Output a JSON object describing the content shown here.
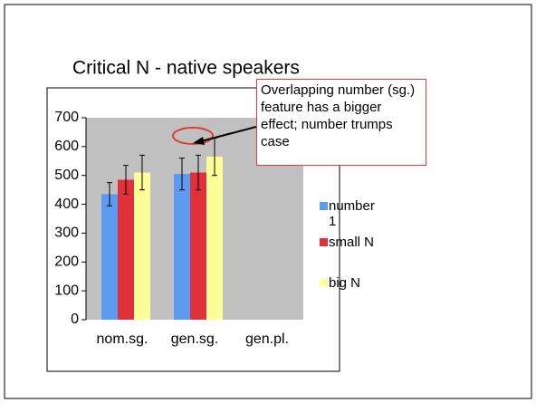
{
  "chart_data": {
    "type": "bar",
    "title": "Critical N - native speakers",
    "categories": [
      "nom.sg.",
      "gen.sg.",
      "gen.pl."
    ],
    "series": [
      {
        "name": "number 1",
        "color": "#5b9bf0",
        "values": [
          435,
          505,
          null
        ],
        "errors": [
          40,
          55,
          null
        ]
      },
      {
        "name": "small N",
        "color": "#e0303a",
        "values": [
          485,
          510,
          null
        ],
        "errors": [
          50,
          60,
          null
        ]
      },
      {
        "name": "big N",
        "color": "#ffff99",
        "values": [
          510,
          565,
          null
        ],
        "errors": [
          60,
          65,
          null
        ]
      }
    ],
    "ylim": [
      0,
      700
    ],
    "yticks": [
      0,
      100,
      200,
      300,
      400,
      500,
      600,
      700
    ],
    "annotation": "Overlapping number (sg.) feature has a bigger effect; number trumps case"
  }
}
